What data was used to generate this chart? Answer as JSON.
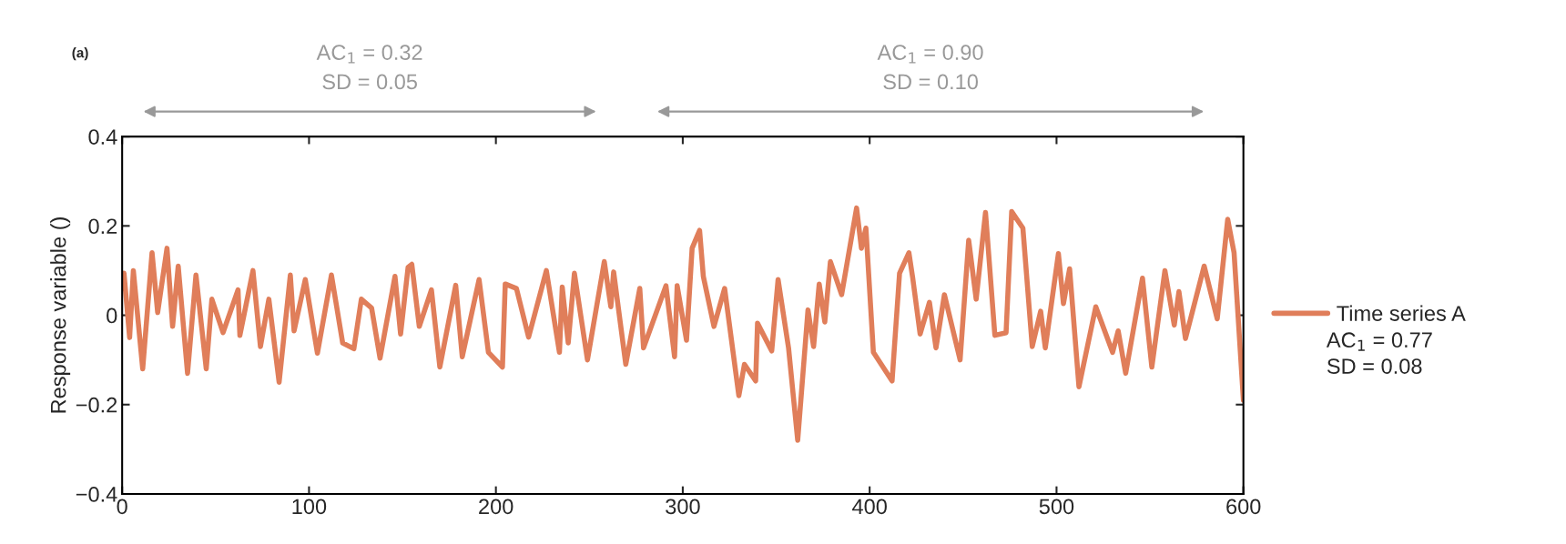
{
  "chart_data": {
    "type": "line",
    "title": "(a)",
    "ylabel": "Response variable ()",
    "x": [
      0.5,
      1,
      4,
      6,
      11,
      16,
      19,
      24,
      27,
      30,
      35,
      39.5,
      45,
      48,
      54,
      62,
      63,
      70,
      74,
      78.5,
      84,
      90,
      92,
      98,
      104.5,
      112,
      118,
      124,
      128,
      133.5,
      138,
      146,
      149,
      153,
      155,
      159,
      165.5,
      170,
      178.5,
      182,
      191,
      196,
      203.5,
      205,
      211,
      217.5,
      227,
      234,
      235.5,
      238.7,
      242,
      249,
      258,
      261.5,
      263,
      269.5,
      277,
      279,
      291,
      295.6,
      297,
      302,
      305,
      309,
      311,
      316.7,
      322.4,
      330,
      333,
      339,
      340,
      347.6,
      351,
      356.6,
      361.5,
      367,
      370,
      373,
      376,
      379,
      385,
      393,
      395.6,
      398,
      402,
      412,
      416,
      421,
      423,
      427,
      432,
      435.5,
      440,
      448.4,
      453,
      457,
      462,
      467,
      473,
      476,
      482,
      487,
      491.5,
      494,
      501,
      503.7,
      507,
      512,
      521,
      530,
      533,
      537,
      546,
      551,
      558,
      563,
      565.5,
      569,
      579,
      586,
      591.6,
      595,
      600
    ],
    "series": [
      {
        "name": "Time series A",
        "color": "#e07e5a",
        "values": [
          0.06,
          0.094,
          -0.05,
          0.1,
          -0.12,
          0.14,
          0.006,
          0.15,
          -0.025,
          0.11,
          -0.13,
          0.09,
          -0.12,
          0.036,
          -0.039,
          0.057,
          -0.045,
          0.1,
          -0.07,
          0.036,
          -0.15,
          0.09,
          -0.035,
          0.08,
          -0.085,
          0.09,
          -0.062,
          -0.075,
          0.036,
          0.016,
          -0.096,
          0.087,
          -0.042,
          0.107,
          0.114,
          -0.025,
          0.057,
          -0.116,
          0.067,
          -0.093,
          0.08,
          -0.083,
          -0.116,
          0.07,
          0.06,
          -0.049,
          0.1,
          -0.083,
          0.063,
          -0.062,
          0.094,
          -0.1,
          0.12,
          0.019,
          0.097,
          -0.11,
          0.06,
          -0.073,
          0.066,
          -0.093,
          0.066,
          -0.056,
          0.15,
          0.19,
          0.087,
          -0.025,
          0.06,
          -0.18,
          -0.11,
          -0.147,
          -0.018,
          -0.08,
          0.08,
          -0.073,
          -0.28,
          0.012,
          -0.07,
          0.07,
          -0.015,
          0.12,
          0.046,
          0.24,
          0.15,
          0.195,
          -0.083,
          -0.147,
          0.094,
          0.14,
          0.085,
          -0.042,
          0.029,
          -0.073,
          0.046,
          -0.1,
          0.168,
          0.036,
          0.23,
          -0.045,
          -0.039,
          0.232,
          0.195,
          -0.07,
          0.009,
          -0.073,
          0.138,
          0.026,
          0.104,
          -0.16,
          0.019,
          -0.083,
          -0.035,
          -0.13,
          0.083,
          -0.116,
          0.1,
          -0.022,
          0.053,
          -0.052,
          0.11,
          -0.008,
          0.215,
          0.14,
          -0.19
        ]
      }
    ],
    "xlim": [
      0,
      600
    ],
    "xticks": [
      0,
      100,
      200,
      300,
      400,
      500,
      600
    ],
    "ylim": [
      -0.4,
      0.4
    ],
    "yticks": [
      {
        "value": -0.4,
        "label": "−0.4"
      },
      {
        "value": -0.2,
        "label": "−0.2"
      },
      0,
      0.2,
      0.4
    ],
    "annotations": [
      "AC$_{1}$ = 0.32\nSD = 0.05",
      "AC$_{1}$ = 0.90\nSD = 0.10",
      "AC$_{1}$ = 0.77\nSD = 0.08"
    ],
    "legend": "right",
    "grid": false,
    "line_style": "solid",
    "marker": "none"
  }
}
